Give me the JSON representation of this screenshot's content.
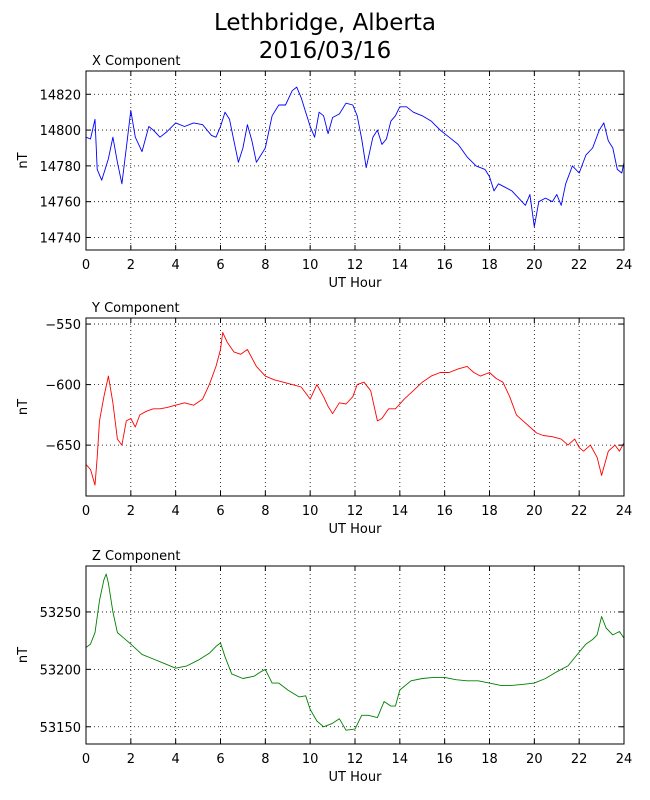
{
  "figure": {
    "title_line1": "Lethbridge, Alberta",
    "title_line2": "2016/03/16"
  },
  "chart_data": [
    {
      "type": "line",
      "title": "X Component",
      "xlabel": "UT Hour",
      "ylabel": "nT",
      "xlim": [
        0,
        24
      ],
      "ylim": [
        14733,
        14833
      ],
      "xticks": [
        0,
        2,
        4,
        6,
        8,
        10,
        12,
        14,
        16,
        18,
        20,
        22,
        24
      ],
      "yticks": [
        14740,
        14760,
        14780,
        14800,
        14820
      ],
      "grid": true,
      "series": [
        {
          "color": "#0000ff",
          "x": [
            0,
            0.2,
            0.4,
            0.5,
            0.7,
            1.0,
            1.2,
            1.4,
            1.6,
            1.8,
            2.0,
            2.2,
            2.5,
            2.8,
            3.0,
            3.3,
            3.6,
            4.0,
            4.4,
            4.8,
            5.2,
            5.6,
            5.8,
            6.0,
            6.2,
            6.4,
            6.6,
            6.8,
            7.0,
            7.2,
            7.4,
            7.6,
            7.8,
            8.0,
            8.3,
            8.6,
            8.9,
            9.2,
            9.4,
            9.6,
            9.8,
            10.0,
            10.2,
            10.4,
            10.6,
            10.8,
            11.0,
            11.3,
            11.6,
            11.9,
            12.1,
            12.3,
            12.5,
            12.8,
            13.0,
            13.2,
            13.4,
            13.6,
            13.8,
            14.0,
            14.3,
            14.6,
            15.0,
            15.4,
            15.8,
            16.2,
            16.6,
            17.0,
            17.4,
            17.8,
            18.0,
            18.2,
            18.4,
            18.7,
            19.0,
            19.3,
            19.6,
            19.8,
            20.0,
            20.2,
            20.5,
            20.8,
            21.0,
            21.2,
            21.4,
            21.7,
            22.0,
            22.3,
            22.6,
            22.9,
            23.1,
            23.3,
            23.5,
            23.7,
            23.9,
            24.0
          ],
          "values": [
            14796,
            14795,
            14806,
            14778,
            14772,
            14784,
            14796,
            14782,
            14770,
            14790,
            14811,
            14796,
            14788,
            14802,
            14800,
            14796,
            14799,
            14804,
            14802,
            14804,
            14803,
            14797,
            14796,
            14802,
            14810,
            14806,
            14794,
            14782,
            14790,
            14803,
            14794,
            14782,
            14786,
            14790,
            14808,
            14814,
            14814,
            14822,
            14824,
            14818,
            14810,
            14802,
            14796,
            14810,
            14808,
            14798,
            14807,
            14809,
            14815,
            14814,
            14808,
            14795,
            14779,
            14796,
            14800,
            14792,
            14795,
            14805,
            14808,
            14813,
            14813,
            14810,
            14808,
            14805,
            14800,
            14796,
            14792,
            14785,
            14780,
            14778,
            14774,
            14766,
            14770,
            14768,
            14766,
            14762,
            14758,
            14764,
            14746,
            14760,
            14762,
            14760,
            14764,
            14758,
            14770,
            14780,
            14776,
            14786,
            14790,
            14800,
            14804,
            14794,
            14790,
            14778,
            14776,
            14782
          ]
        }
      ]
    },
    {
      "type": "line",
      "title": "Y Component",
      "xlabel": "UT Hour",
      "ylabel": "nT",
      "xlim": [
        0,
        24
      ],
      "ylim": [
        -692,
        -545
      ],
      "xticks": [
        0,
        2,
        4,
        6,
        8,
        10,
        12,
        14,
        16,
        18,
        20,
        22,
        24
      ],
      "yticks": [
        -550,
        -600,
        -650
      ],
      "grid": true,
      "series": [
        {
          "color": "#ff0000",
          "x": [
            0,
            0.2,
            0.4,
            0.5,
            0.6,
            0.8,
            1.0,
            1.2,
            1.4,
            1.6,
            1.8,
            2.0,
            2.2,
            2.4,
            2.7,
            3.0,
            3.3,
            3.6,
            4.0,
            4.4,
            4.8,
            5.2,
            5.5,
            5.8,
            6.0,
            6.1,
            6.3,
            6.6,
            6.9,
            7.2,
            7.6,
            8.0,
            8.4,
            8.8,
            9.2,
            9.6,
            10.0,
            10.3,
            10.6,
            10.8,
            11.0,
            11.3,
            11.6,
            11.9,
            12.1,
            12.4,
            12.7,
            13.0,
            13.2,
            13.5,
            13.8,
            14.2,
            14.6,
            15.0,
            15.4,
            15.8,
            16.2,
            16.6,
            17.0,
            17.3,
            17.6,
            18.0,
            18.3,
            18.6,
            18.9,
            19.2,
            19.5,
            19.8,
            20.1,
            20.4,
            20.8,
            21.2,
            21.5,
            21.8,
            22.0,
            22.2,
            22.5,
            22.8,
            23.0,
            23.3,
            23.6,
            23.8,
            24.0
          ],
          "values": [
            -666,
            -670,
            -683,
            -660,
            -630,
            -610,
            -593,
            -615,
            -645,
            -650,
            -630,
            -628,
            -635,
            -625,
            -622,
            -620,
            -620,
            -619,
            -617,
            -615,
            -617,
            -612,
            -600,
            -585,
            -571,
            -557,
            -565,
            -573,
            -575,
            -571,
            -585,
            -593,
            -596,
            -598,
            -600,
            -602,
            -612,
            -600,
            -610,
            -618,
            -624,
            -615,
            -616,
            -610,
            -600,
            -598,
            -605,
            -630,
            -628,
            -620,
            -620,
            -612,
            -605,
            -598,
            -593,
            -590,
            -590,
            -587,
            -585,
            -590,
            -593,
            -590,
            -595,
            -598,
            -610,
            -625,
            -630,
            -635,
            -640,
            -642,
            -643,
            -645,
            -650,
            -645,
            -652,
            -655,
            -650,
            -660,
            -675,
            -655,
            -650,
            -655,
            -648
          ]
        }
      ]
    },
    {
      "type": "line",
      "title": "Z Component",
      "xlabel": "UT Hour",
      "ylabel": "nT",
      "xlim": [
        0,
        24
      ],
      "ylim": [
        53135,
        53290
      ],
      "xticks": [
        0,
        2,
        4,
        6,
        8,
        10,
        12,
        14,
        16,
        18,
        20,
        22,
        24
      ],
      "yticks": [
        53150,
        53200,
        53250
      ],
      "grid": true,
      "series": [
        {
          "color": "#008000",
          "x": [
            0,
            0.2,
            0.4,
            0.6,
            0.8,
            0.9,
            1.0,
            1.2,
            1.4,
            1.7,
            2.0,
            2.5,
            3.0,
            3.5,
            4.0,
            4.5,
            5.0,
            5.5,
            5.8,
            6.0,
            6.2,
            6.5,
            7.0,
            7.5,
            7.8,
            8.0,
            8.3,
            8.6,
            9.0,
            9.5,
            9.8,
            10.0,
            10.3,
            10.6,
            11.0,
            11.3,
            11.6,
            12.0,
            12.3,
            12.6,
            13.0,
            13.3,
            13.6,
            13.8,
            14.0,
            14.5,
            15.0,
            15.5,
            16.0,
            16.5,
            17.0,
            17.5,
            18.0,
            18.5,
            19.0,
            19.5,
            20.0,
            20.5,
            21.0,
            21.5,
            22.0,
            22.3,
            22.6,
            22.8,
            23.0,
            23.2,
            23.5,
            23.8,
            24.0
          ],
          "values": [
            53219,
            53222,
            53232,
            53260,
            53278,
            53283,
            53275,
            53250,
            53232,
            53227,
            53222,
            53213,
            53209,
            53205,
            53201,
            53203,
            53208,
            53214,
            53220,
            53223,
            53211,
            53196,
            53192,
            53194,
            53198,
            53200,
            53188,
            53188,
            53182,
            53176,
            53177,
            53165,
            53155,
            53150,
            53153,
            53157,
            53147,
            53148,
            53160,
            53160,
            53158,
            53172,
            53168,
            53168,
            53182,
            53190,
            53192,
            53193,
            53193,
            53191,
            53190,
            53190,
            53188,
            53186,
            53186,
            53187,
            53188,
            53192,
            53198,
            53203,
            53215,
            53222,
            53226,
            53230,
            53246,
            53236,
            53230,
            53233,
            53227
          ]
        }
      ]
    }
  ]
}
